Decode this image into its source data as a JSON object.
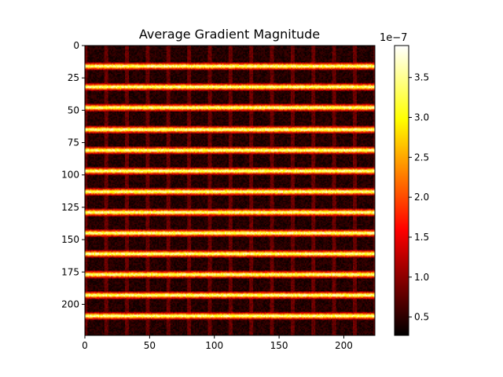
{
  "chart_data": {
    "type": "heatmap",
    "title": "Average Gradient Magnitude",
    "xlabel": "",
    "ylabel": "",
    "x_range": [
      0,
      224
    ],
    "y_range": [
      0,
      224
    ],
    "x_ticks": [
      0,
      50,
      100,
      150,
      200
    ],
    "y_ticks": [
      0,
      25,
      50,
      75,
      100,
      125,
      150,
      175,
      200
    ],
    "colormap": "hot",
    "colorbar": {
      "exponent_label": "1e−7",
      "range": [
        0.27,
        3.9
      ],
      "ticks": [
        0.5,
        1.0,
        1.5,
        2.0,
        2.5,
        3.0,
        3.5
      ],
      "tick_labels": [
        "0.5",
        "1.0",
        "1.5",
        "2.0",
        "2.5",
        "3.0",
        "3.5"
      ]
    },
    "bright_rows_approx": [
      16,
      32,
      48,
      65,
      81,
      97,
      113,
      129,
      145,
      161,
      177,
      193,
      209
    ],
    "column_period_approx": 16,
    "grid": false
  }
}
